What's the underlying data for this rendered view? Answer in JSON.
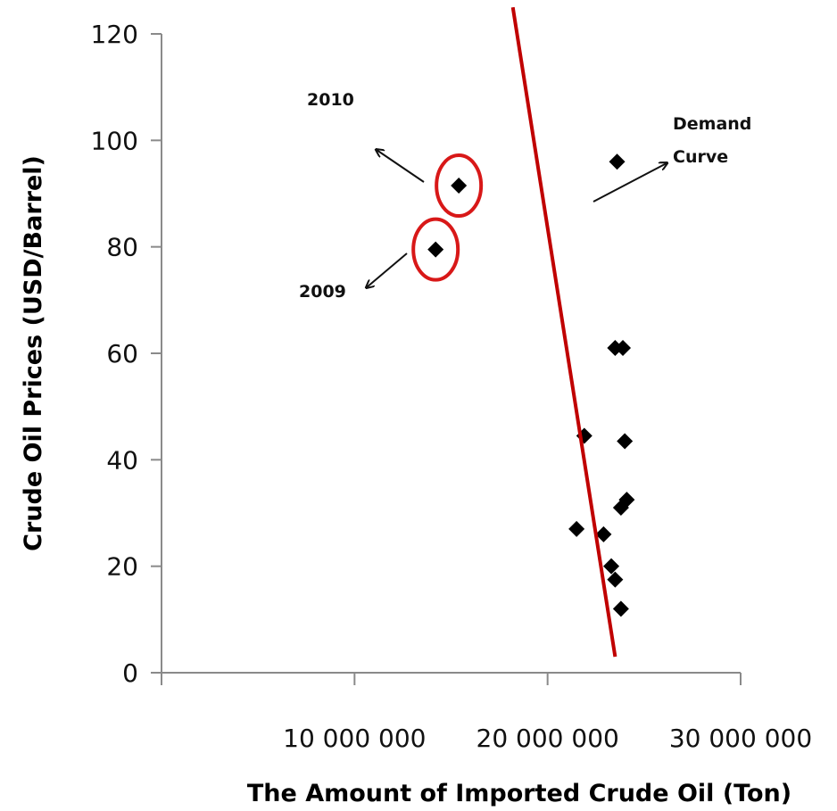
{
  "chart_data": {
    "type": "scatter",
    "title": "",
    "xlabel": "The Amount of Imported Crude Oil (Ton)",
    "ylabel": "Crude Oil Prices (USD/Barrel)",
    "xlim": [
      0,
      30000000
    ],
    "ylim": [
      0,
      120
    ],
    "xticks": [
      0,
      10000000,
      20000000,
      30000000
    ],
    "xtick_labels": [
      "",
      "10 000 000",
      "20 000 000",
      "30 000 000"
    ],
    "yticks": [
      0,
      20,
      40,
      60,
      80,
      100,
      120
    ],
    "ytick_labels": [
      "0",
      "20",
      "40",
      "60",
      "80",
      "100",
      "120"
    ],
    "grid": false,
    "legend": "none",
    "marker": "diamond",
    "marker_color": "#000000",
    "points": [
      {
        "x": 14200000,
        "y": 79.5
      },
      {
        "x": 15400000,
        "y": 91.5
      },
      {
        "x": 23600000,
        "y": 96
      },
      {
        "x": 23500000,
        "y": 61
      },
      {
        "x": 23900000,
        "y": 61
      },
      {
        "x": 21900000,
        "y": 44.5
      },
      {
        "x": 24000000,
        "y": 43.5
      },
      {
        "x": 24100000,
        "y": 32.5
      },
      {
        "x": 23800000,
        "y": 31
      },
      {
        "x": 21500000,
        "y": 27
      },
      {
        "x": 22900000,
        "y": 26
      },
      {
        "x": 23300000,
        "y": 20
      },
      {
        "x": 23500000,
        "y": 17.5
      },
      {
        "x": 23800000,
        "y": 12
      }
    ],
    "demand_curve": {
      "color": "#c00000",
      "from": {
        "x": 18200000,
        "y": 125
      },
      "to": {
        "x": 23500000,
        "y": 3
      }
    },
    "highlighted_points": [
      {
        "label": "2010",
        "x": 15400000,
        "y": 91.5
      },
      {
        "label": "2009",
        "x": 14200000,
        "y": 79.5
      }
    ],
    "annotations": {
      "label_2010": "2010",
      "label_2009": "2009",
      "demand_line1": "Demand",
      "demand_line2": "Curve"
    },
    "highlight_color": "#d81818"
  }
}
